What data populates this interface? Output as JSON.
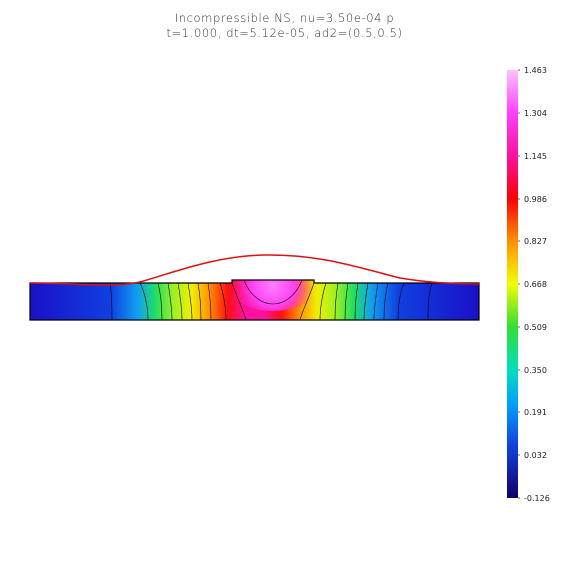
{
  "title": {
    "line1": "Incompressible  NS,  nu=3.50e-04   p",
    "line2": "t=1.000,  dt=5.12e-05,  ad2=(0.5,0.5)"
  },
  "colorbar": {
    "labels": [
      "1.463",
      "1.304",
      "1.145",
      "0.986",
      "0.827",
      "0.668",
      "0.509",
      "0.350",
      "0.191",
      "0.032",
      "-0.126"
    ]
  },
  "colors": {
    "surface_curve": "#e01010",
    "contour": "#000000"
  }
}
